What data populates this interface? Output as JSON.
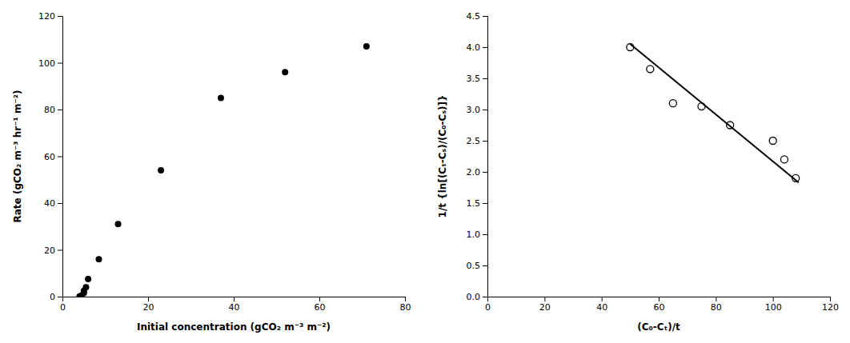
{
  "chart_data": [
    {
      "type": "scatter",
      "xlabel": "Initial concentration (gCO₂ m⁻³ m⁻²)",
      "ylabel": "Rate (gCO₂ m⁻³ hr⁻¹ m⁻²)",
      "x": [
        4,
        4.5,
        5,
        5,
        5.5,
        6,
        8.5,
        13,
        23,
        37,
        52,
        71
      ],
      "values": [
        0.1,
        0.5,
        1.5,
        2.5,
        4.0,
        7.5,
        16,
        31,
        54,
        85,
        96,
        107
      ],
      "color": "black",
      "marker": "circle",
      "xlim": [
        0,
        80
      ],
      "ylim": [
        0,
        120
      ],
      "xticks": [
        0,
        20,
        40,
        60,
        80
      ],
      "yticks": [
        0,
        20,
        40,
        60,
        80,
        100,
        120
      ]
    },
    {
      "type": "scatter",
      "xlabel": "(C₀-Cₜ)/t",
      "ylabel": "1/t {ln[(Cₜ-Cₛ)/(C₀-Cₛ)]}",
      "series": [
        {
          "type": "scatter",
          "x": [
            50,
            57,
            65,
            75,
            85,
            100,
            104,
            108
          ],
          "values": [
            4.0,
            3.65,
            3.1,
            3.05,
            2.75,
            2.5,
            2.2,
            1.9
          ],
          "color": "black",
          "marker": "open-circle"
        },
        {
          "type": "line",
          "x": [
            50,
            109
          ],
          "values": [
            4.05,
            1.83
          ],
          "color": "black",
          "line_style": "solid"
        }
      ],
      "xlim": [
        0,
        120
      ],
      "ylim": [
        0,
        4.5
      ],
      "xticks": [
        0,
        20,
        40,
        60,
        80,
        100,
        120
      ],
      "yticks": [
        {
          "value": 0,
          "label": "0.0"
        },
        0.5,
        {
          "value": 1,
          "label": "1.0"
        },
        1.5,
        {
          "value": 2,
          "label": "2.0"
        },
        2.5,
        {
          "value": 3,
          "label": "3.0"
        },
        3.5,
        {
          "value": 4,
          "label": "4.0"
        },
        4.5
      ]
    }
  ]
}
